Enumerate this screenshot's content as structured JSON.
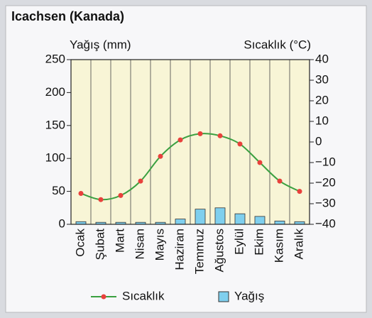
{
  "chart_data": {
    "type": "climate",
    "title": "Icachsen (Kanada)",
    "y_label": "Yağış (mm)",
    "y2_label": "Sıcaklık (°C)",
    "categories": [
      "Ocak",
      "Şubat",
      "Mart",
      "Nisan",
      "Mayıs",
      "Haziran",
      "Temmuz",
      "Ağustos",
      "Eylül",
      "Ekim",
      "Kasım",
      "Aralık"
    ],
    "series": [
      {
        "name": "Sıcaklık",
        "type": "line",
        "axis": "y2",
        "color": "#3aa040",
        "marker_color": "#e8413c",
        "values": [
          -25,
          -28,
          -26,
          -19,
          -7,
          1,
          4,
          3,
          -1,
          -10,
          -19,
          -24
        ]
      },
      {
        "name": "Yağış",
        "type": "bar",
        "color": "#7fcfee",
        "values": [
          4,
          3,
          3,
          3,
          3,
          8,
          23,
          25,
          16,
          12,
          5,
          4
        ]
      }
    ],
    "ylim": [
      0,
      250
    ],
    "yticks": [
      0,
      50,
      100,
      150,
      200,
      250
    ],
    "y2lim": [
      -40,
      40
    ],
    "y2ticks": [
      {
        "value": -40,
        "label": "−40"
      },
      {
        "value": -30,
        "label": "−30"
      },
      {
        "value": -20,
        "label": "−20"
      },
      {
        "value": -10,
        "label": "−10"
      },
      0,
      10,
      20,
      30,
      40
    ]
  }
}
